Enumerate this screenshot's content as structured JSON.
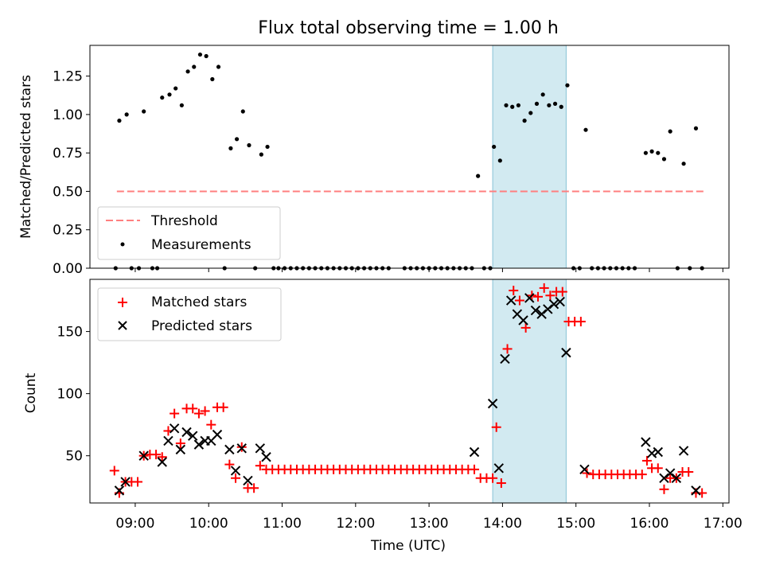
{
  "chart_data": [
    {
      "type": "scatter",
      "title": "Flux total observing time = 1.00 h",
      "xlabel": "",
      "ylabel": "Matched/Predicted stars",
      "ylim": [
        0,
        1.45
      ],
      "yticks": [
        "0.00",
        "0.25",
        "0.50",
        "0.75",
        "1.00",
        "1.25"
      ],
      "highlight_span": [
        "13:52",
        "14:52"
      ],
      "legend_position": "lower-left",
      "series": [
        {
          "name": "Threshold",
          "kind": "dashed-line",
          "color": "#ff7f7f",
          "x": [
            "08:45",
            "16:45"
          ],
          "y": [
            0.5,
            0.5
          ]
        },
        {
          "name": "Measurements",
          "kind": "points",
          "color": "#000000",
          "points": [
            [
              "08:44",
              0.0
            ],
            [
              "08:47",
              0.96
            ],
            [
              "08:53",
              1.0
            ],
            [
              "08:57",
              0.0
            ],
            [
              "09:03",
              0.0
            ],
            [
              "09:07",
              1.02
            ],
            [
              "09:14",
              0.0
            ],
            [
              "09:18",
              0.0
            ],
            [
              "09:22",
              1.11
            ],
            [
              "09:28",
              1.13
            ],
            [
              "09:33",
              1.17
            ],
            [
              "09:38",
              1.06
            ],
            [
              "09:43",
              1.28
            ],
            [
              "09:48",
              1.31
            ],
            [
              "09:53",
              1.39
            ],
            [
              "09:58",
              1.38
            ],
            [
              "10:03",
              1.23
            ],
            [
              "10:08",
              1.31
            ],
            [
              "10:13",
              0.0
            ],
            [
              "10:18",
              0.78
            ],
            [
              "10:23",
              0.84
            ],
            [
              "10:28",
              1.02
            ],
            [
              "10:33",
              0.8
            ],
            [
              "10:38",
              0.0
            ],
            [
              "10:43",
              0.74
            ],
            [
              "10:48",
              0.79
            ],
            [
              "10:53",
              0.0
            ],
            [
              "10:57",
              0.0
            ],
            [
              "11:02",
              0.0
            ],
            [
              "11:07",
              0.0
            ],
            [
              "11:12",
              0.0
            ],
            [
              "11:17",
              0.0
            ],
            [
              "11:22",
              0.0
            ],
            [
              "11:27",
              0.0
            ],
            [
              "11:32",
              0.0
            ],
            [
              "11:37",
              0.0
            ],
            [
              "11:42",
              0.0
            ],
            [
              "11:47",
              0.0
            ],
            [
              "11:52",
              0.0
            ],
            [
              "11:57",
              0.0
            ],
            [
              "12:02",
              0.0
            ],
            [
              "12:07",
              0.0
            ],
            [
              "12:12",
              0.0
            ],
            [
              "12:17",
              0.0
            ],
            [
              "12:22",
              0.0
            ],
            [
              "12:27",
              0.0
            ],
            [
              "12:40",
              0.0
            ],
            [
              "12:45",
              0.0
            ],
            [
              "12:50",
              0.0
            ],
            [
              "12:55",
              0.0
            ],
            [
              "13:00",
              0.0
            ],
            [
              "13:05",
              0.0
            ],
            [
              "13:10",
              0.0
            ],
            [
              "13:15",
              0.0
            ],
            [
              "13:20",
              0.0
            ],
            [
              "13:25",
              0.0
            ],
            [
              "13:30",
              0.0
            ],
            [
              "13:35",
              0.0
            ],
            [
              "13:40",
              0.6
            ],
            [
              "13:45",
              0.0
            ],
            [
              "13:50",
              0.0
            ],
            [
              "13:53",
              0.79
            ],
            [
              "13:58",
              0.7
            ],
            [
              "14:03",
              1.06
            ],
            [
              "14:08",
              1.05
            ],
            [
              "14:13",
              1.06
            ],
            [
              "14:18",
              0.96
            ],
            [
              "14:23",
              1.01
            ],
            [
              "14:28",
              1.07
            ],
            [
              "14:33",
              1.13
            ],
            [
              "14:38",
              1.06
            ],
            [
              "14:43",
              1.07
            ],
            [
              "14:48",
              1.05
            ],
            [
              "14:53",
              1.19
            ],
            [
              "14:58",
              0.0
            ],
            [
              "15:03",
              0.0
            ],
            [
              "15:08",
              0.9
            ],
            [
              "15:13",
              0.0
            ],
            [
              "15:18",
              0.0
            ],
            [
              "15:23",
              0.0
            ],
            [
              "15:28",
              0.0
            ],
            [
              "15:33",
              0.0
            ],
            [
              "15:38",
              0.0
            ],
            [
              "15:43",
              0.0
            ],
            [
              "15:48",
              0.0
            ],
            [
              "15:57",
              0.75
            ],
            [
              "16:02",
              0.76
            ],
            [
              "16:07",
              0.75
            ],
            [
              "16:12",
              0.71
            ],
            [
              "16:17",
              0.89
            ],
            [
              "16:23",
              0.0
            ],
            [
              "16:28",
              0.68
            ],
            [
              "16:33",
              0.0
            ],
            [
              "16:38",
              0.91
            ],
            [
              "16:43",
              0.0
            ]
          ]
        }
      ]
    },
    {
      "type": "scatter",
      "title": "",
      "xlabel": "Time (UTC)",
      "ylabel": "Count",
      "ylim": [
        12,
        192
      ],
      "xlim": [
        "08:23",
        "17:05"
      ],
      "yticks": [
        "50",
        "100",
        "150"
      ],
      "xticks": [
        "09:00",
        "10:00",
        "11:00",
        "12:00",
        "13:00",
        "14:00",
        "15:00",
        "16:00",
        "17:00"
      ],
      "highlight_span": [
        "13:52",
        "14:52"
      ],
      "legend_position": "upper-left",
      "series": [
        {
          "name": "Matched stars",
          "marker": "plus",
          "color": "#ff0000",
          "points": [
            [
              "08:43",
              38
            ],
            [
              "08:47",
              20
            ],
            [
              "08:52",
              29
            ],
            [
              "08:57",
              29
            ],
            [
              "09:02",
              29
            ],
            [
              "09:07",
              50
            ],
            [
              "09:12",
              51
            ],
            [
              "09:17",
              51
            ],
            [
              "09:22",
              49
            ],
            [
              "09:27",
              70
            ],
            [
              "09:32",
              84
            ],
            [
              "09:37",
              60
            ],
            [
              "09:42",
              88
            ],
            [
              "09:47",
              88
            ],
            [
              "09:52",
              84
            ],
            [
              "09:57",
              86
            ],
            [
              "10:02",
              75
            ],
            [
              "10:07",
              89
            ],
            [
              "10:12",
              89
            ],
            [
              "10:17",
              43
            ],
            [
              "10:22",
              32
            ],
            [
              "10:27",
              57
            ],
            [
              "10:32",
              24
            ],
            [
              "10:37",
              24
            ],
            [
              "10:42",
              42
            ],
            [
              "10:47",
              39
            ],
            [
              "10:52",
              39
            ],
            [
              "10:57",
              39
            ],
            [
              "11:02",
              39
            ],
            [
              "11:07",
              39
            ],
            [
              "11:12",
              39
            ],
            [
              "11:17",
              39
            ],
            [
              "11:22",
              39
            ],
            [
              "11:27",
              39
            ],
            [
              "11:32",
              39
            ],
            [
              "11:37",
              39
            ],
            [
              "11:42",
              39
            ],
            [
              "11:47",
              39
            ],
            [
              "11:52",
              39
            ],
            [
              "11:57",
              39
            ],
            [
              "12:02",
              39
            ],
            [
              "12:07",
              39
            ],
            [
              "12:12",
              39
            ],
            [
              "12:17",
              39
            ],
            [
              "12:22",
              39
            ],
            [
              "12:27",
              39
            ],
            [
              "12:32",
              39
            ],
            [
              "12:37",
              39
            ],
            [
              "12:42",
              39
            ],
            [
              "12:47",
              39
            ],
            [
              "12:52",
              39
            ],
            [
              "12:57",
              39
            ],
            [
              "13:02",
              39
            ],
            [
              "13:07",
              39
            ],
            [
              "13:12",
              39
            ],
            [
              "13:17",
              39
            ],
            [
              "13:22",
              39
            ],
            [
              "13:27",
              39
            ],
            [
              "13:32",
              39
            ],
            [
              "13:37",
              39
            ],
            [
              "13:42",
              32
            ],
            [
              "13:47",
              32
            ],
            [
              "13:52",
              32
            ],
            [
              "13:55",
              73
            ],
            [
              "13:59",
              28
            ],
            [
              "14:04",
              136
            ],
            [
              "14:09",
              183
            ],
            [
              "14:14",
              175
            ],
            [
              "14:19",
              153
            ],
            [
              "14:24",
              179
            ],
            [
              "14:29",
              178
            ],
            [
              "14:34",
              185
            ],
            [
              "14:39",
              179
            ],
            [
              "14:44",
              182
            ],
            [
              "14:49",
              182
            ],
            [
              "14:54",
              158
            ],
            [
              "14:59",
              158
            ],
            [
              "15:04",
              158
            ],
            [
              "15:09",
              36
            ],
            [
              "15:14",
              35
            ],
            [
              "15:19",
              35
            ],
            [
              "15:24",
              35
            ],
            [
              "15:29",
              35
            ],
            [
              "15:34",
              35
            ],
            [
              "15:39",
              35
            ],
            [
              "15:44",
              35
            ],
            [
              "15:49",
              35
            ],
            [
              "15:54",
              35
            ],
            [
              "15:58",
              46
            ],
            [
              "16:02",
              40
            ],
            [
              "16:07",
              40
            ],
            [
              "16:12",
              23
            ],
            [
              "16:17",
              32
            ],
            [
              "16:22",
              32
            ],
            [
              "16:27",
              37
            ],
            [
              "16:32",
              37
            ],
            [
              "16:38",
              20
            ],
            [
              "16:43",
              20
            ]
          ]
        },
        {
          "name": "Predicted stars",
          "marker": "x",
          "color": "#000000",
          "points": [
            [
              "08:47",
              22
            ],
            [
              "08:52",
              29
            ],
            [
              "09:07",
              50
            ],
            [
              "09:22",
              45
            ],
            [
              "09:27",
              62
            ],
            [
              "09:32",
              72
            ],
            [
              "09:37",
              55
            ],
            [
              "09:42",
              69
            ],
            [
              "09:47",
              66
            ],
            [
              "09:52",
              59
            ],
            [
              "09:57",
              62
            ],
            [
              "10:02",
              62
            ],
            [
              "10:07",
              67
            ],
            [
              "10:17",
              55
            ],
            [
              "10:22",
              38
            ],
            [
              "10:27",
              56
            ],
            [
              "10:32",
              30
            ],
            [
              "10:42",
              56
            ],
            [
              "10:47",
              49
            ],
            [
              "13:37",
              53
            ],
            [
              "13:52",
              92
            ],
            [
              "13:57",
              40
            ],
            [
              "14:02",
              128
            ],
            [
              "14:07",
              175
            ],
            [
              "14:12",
              164
            ],
            [
              "14:17",
              159
            ],
            [
              "14:22",
              177
            ],
            [
              "14:27",
              167
            ],
            [
              "14:32",
              164
            ],
            [
              "14:37",
              168
            ],
            [
              "14:42",
              172
            ],
            [
              "14:47",
              174
            ],
            [
              "14:52",
              133
            ],
            [
              "15:07",
              39
            ],
            [
              "15:57",
              61
            ],
            [
              "16:02",
              52
            ],
            [
              "16:07",
              53
            ],
            [
              "16:12",
              32
            ],
            [
              "16:17",
              36
            ],
            [
              "16:22",
              32
            ],
            [
              "16:28",
              54
            ],
            [
              "16:38",
              22
            ]
          ]
        }
      ]
    }
  ]
}
